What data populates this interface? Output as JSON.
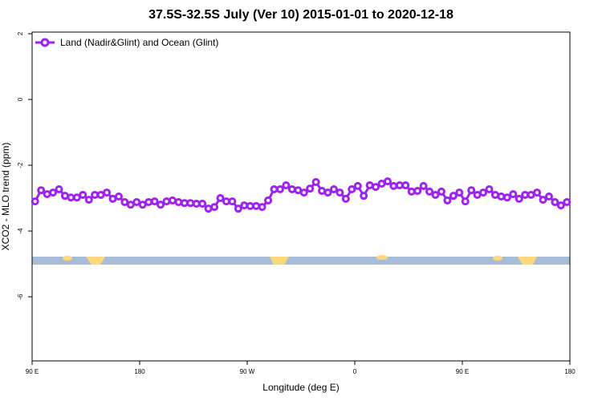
{
  "chart_data": {
    "type": "line",
    "title": "37.5S-32.5S July (Ver 10)   2015-01-01 to 2020-12-18",
    "x_label": "Longitude (deg E)",
    "y_label": "XCO2 - MLO trend (ppm)",
    "legend": "top-left",
    "xlim": [
      90,
      540
    ],
    "ylim": [
      -7.95,
      2.05
    ],
    "xticks": [
      {
        "value": 90,
        "label": "90 E"
      },
      180,
      {
        "value": 270,
        "label": "90 W"
      },
      {
        "value": 360,
        "label": "0"
      },
      {
        "value": 450,
        "label": "90 E"
      },
      {
        "value": 540,
        "label": "180"
      }
    ],
    "yticks": [
      2,
      0,
      -2,
      -4,
      -6
    ],
    "series": [
      {
        "name": "Land (Nadir&Glint) and Ocean (Glint)",
        "color": "#a020f0",
        "x": [
          92.5,
          97.5,
          102.5,
          107.5,
          112.5,
          117.5,
          122.5,
          127.5,
          132.5,
          137.5,
          142.5,
          147.5,
          152.5,
          157.5,
          162.5,
          167.5,
          172.5,
          177.5,
          182.5,
          187.5,
          192.5,
          197.5,
          202.5,
          207.5,
          212.5,
          217.5,
          222.5,
          227.5,
          232.5,
          237.5,
          242.5,
          247.5,
          252.5,
          257.5,
          262.5,
          267.5,
          272.5,
          277.5,
          282.5,
          287.5,
          292.5,
          297.5,
          302.5,
          307.5,
          312.5,
          317.5,
          322.5,
          327.5,
          332.5,
          337.5,
          342.5,
          347.5,
          352.5,
          357.5,
          362.5,
          367.5,
          372.5,
          377.5,
          382.5,
          387.5,
          392.5,
          397.5,
          402.5,
          407.5,
          412.5,
          417.5,
          422.5,
          427.5,
          432.5,
          437.5,
          442.5,
          447.5,
          452.5,
          457.5,
          462.5,
          467.5,
          472.5,
          477.5,
          482.5,
          487.5,
          492.5,
          497.5,
          502.5,
          507.5,
          512.5,
          517.5,
          522.5,
          527.5,
          532.5,
          537.5
        ],
        "values": [
          -3.1,
          -2.76,
          -2.88,
          -2.83,
          -2.73,
          -2.93,
          -2.98,
          -2.98,
          -2.9,
          -3.05,
          -2.9,
          -2.9,
          -2.83,
          -3.02,
          -2.95,
          -3.12,
          -3.2,
          -3.12,
          -3.2,
          -3.12,
          -3.1,
          -3.2,
          -3.1,
          -3.07,
          -3.12,
          -3.15,
          -3.15,
          -3.17,
          -3.17,
          -3.32,
          -3.27,
          -3.0,
          -3.1,
          -3.1,
          -3.32,
          -3.22,
          -3.24,
          -3.24,
          -3.27,
          -3.07,
          -2.73,
          -2.73,
          -2.61,
          -2.73,
          -2.76,
          -2.83,
          -2.71,
          -2.51,
          -2.78,
          -2.83,
          -2.73,
          -2.83,
          -3.02,
          -2.73,
          -2.63,
          -2.93,
          -2.61,
          -2.66,
          -2.56,
          -2.49,
          -2.63,
          -2.61,
          -2.61,
          -2.8,
          -2.78,
          -2.63,
          -2.8,
          -2.9,
          -2.8,
          -3.07,
          -2.93,
          -2.83,
          -3.1,
          -2.76,
          -2.9,
          -2.83,
          -2.73,
          -2.9,
          -2.95,
          -2.98,
          -2.88,
          -3.02,
          -2.9,
          -2.9,
          -2.83,
          -3.05,
          -2.95,
          -3.12,
          -3.22,
          -3.12
        ]
      }
    ]
  }
}
